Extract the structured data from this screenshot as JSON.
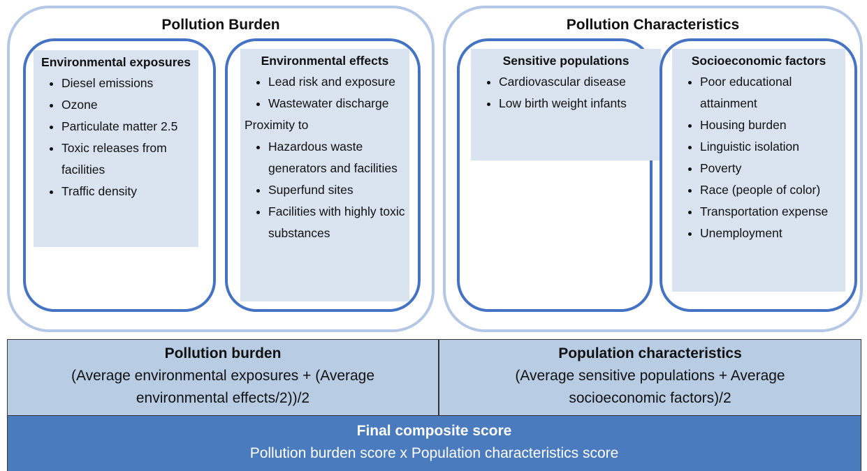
{
  "panels": [
    {
      "title": "Pollution Burden",
      "groups": [
        {
          "heading": "Environmental exposures",
          "items": [
            "Diesel emissions",
            "Ozone",
            "Particulate matter 2.5",
            "Toxic releases from facilities",
            "Traffic density"
          ]
        },
        {
          "heading": "Environmental effects",
          "items": [
            "Lead risk and exposure",
            "Wastewater discharge"
          ],
          "subheading": "Proximity to",
          "subitems": [
            "Hazardous waste generators and facilities",
            "Superfund sites",
            "Facilities with highly toxic substances"
          ]
        }
      ]
    },
    {
      "title": "Pollution Characteristics",
      "groups": [
        {
          "heading": "Sensitive populations",
          "items": [
            "Cardiovascular disease",
            "Low birth weight infants"
          ]
        },
        {
          "heading": "Socioeconomic factors",
          "items": [
            "Poor educational attainment",
            "Housing burden",
            "Linguistic isolation",
            "Poverty",
            "Race (people of color)",
            "Transportation expense",
            "Unemployment"
          ]
        }
      ]
    }
  ],
  "table": {
    "row1": [
      {
        "heading": "Pollution burden",
        "formula": "(Average environmental exposures + (Average environmental effects/2))/2"
      },
      {
        "heading": "Population characteristics",
        "formula": "(Average sensitive populations + Average socioeconomic factors)/2"
      }
    ],
    "final": {
      "heading": "Final composite score",
      "formula": "Pollution burden score x Population characteristics score"
    }
  }
}
